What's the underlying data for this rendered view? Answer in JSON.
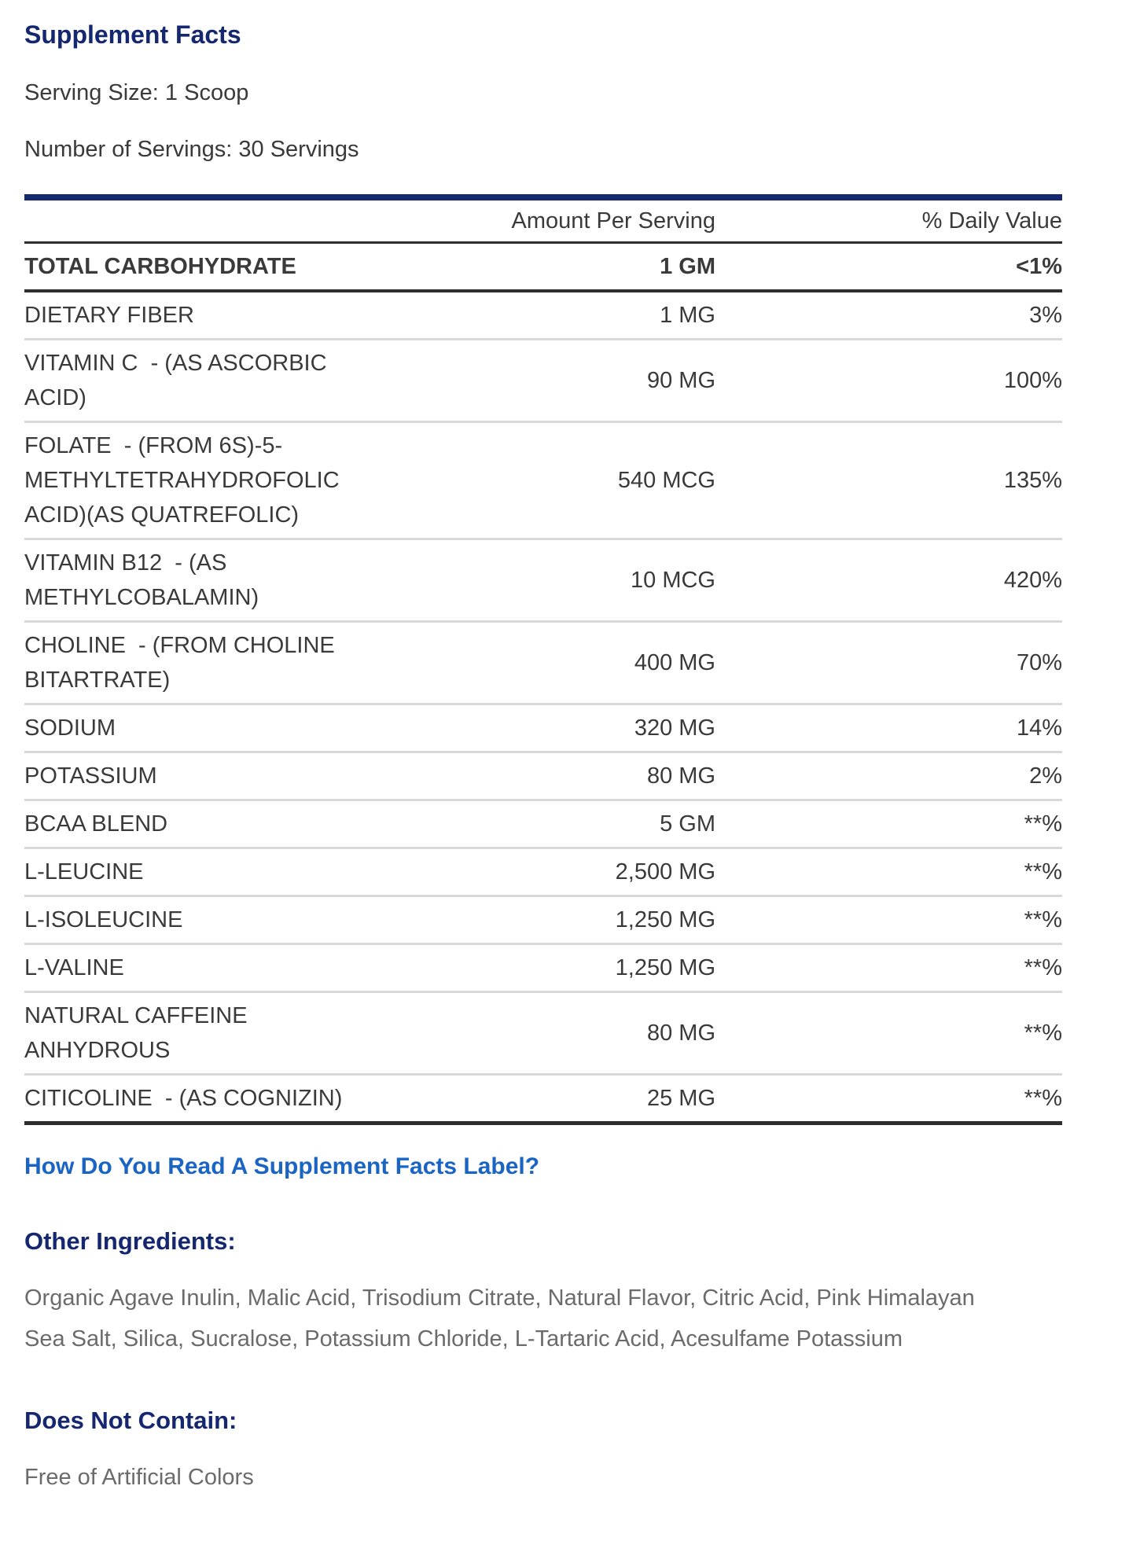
{
  "header": {
    "title": "Supplement Facts",
    "serving_size": "Serving Size: 1 Scoop",
    "number_of_servings": "Number of Servings: 30 Servings"
  },
  "table": {
    "columns": {
      "amount": "Amount Per Serving",
      "daily_value": "% Daily Value"
    },
    "rows": [
      {
        "name": "TOTAL CARBOHYDRATE",
        "amount": "1 GM",
        "dv": "<1%"
      },
      {
        "name": "DIETARY FIBER",
        "amount": "1 MG",
        "dv": "3%"
      },
      {
        "name": "VITAMIN C  - (AS ASCORBIC\nACID)",
        "amount": "90 MG",
        "dv": "100%"
      },
      {
        "name": "FOLATE  - (FROM 6S)-5-\nMETHYLTETRAHYDROFOLIC\nACID)(AS QUATREFOLIC)",
        "amount": "540 MCG",
        "dv": "135%"
      },
      {
        "name": "VITAMIN B12  - (AS\nMETHYLCOBALAMIN)",
        "amount": "10 MCG",
        "dv": "420%"
      },
      {
        "name": "CHOLINE  - (FROM CHOLINE\nBITARTRATE)",
        "amount": "400 MG",
        "dv": "70%"
      },
      {
        "name": "SODIUM",
        "amount": "320 MG",
        "dv": "14%"
      },
      {
        "name": "POTASSIUM",
        "amount": "80 MG",
        "dv": "2%"
      },
      {
        "name": "BCAA BLEND",
        "amount": "5 GM",
        "dv": "**%"
      },
      {
        "name": "L-LEUCINE",
        "amount": "2,500 MG",
        "dv": "**%"
      },
      {
        "name": "L-ISOLEUCINE",
        "amount": "1,250 MG",
        "dv": "**%"
      },
      {
        "name": "L-VALINE",
        "amount": "1,250 MG",
        "dv": "**%"
      },
      {
        "name": "NATURAL CAFFEINE\nANHYDROUS",
        "amount": "80 MG",
        "dv": "**%"
      },
      {
        "name": "CITICOLINE  - (AS COGNIZIN)",
        "amount": "25 MG",
        "dv": "**%"
      }
    ]
  },
  "link": {
    "label": "How Do You Read A Supplement Facts Label?"
  },
  "other_ingredients": {
    "heading": "Other Ingredients:",
    "text": "Organic Agave Inulin, Malic Acid, Trisodium Citrate, Natural Flavor, Citric Acid, Pink Himalayan\nSea Salt, Silica, Sucralose, Potassium Chloride, L-Tartaric Acid, Acesulfame Potassium"
  },
  "does_not_contain": {
    "heading": "Does Not Contain:",
    "text": "Free of Artificial Colors"
  },
  "colors": {
    "navy": "#14276f",
    "link_blue": "#1a64c4",
    "text_dark": "#3a3a3a",
    "text_gray": "#6b6b6b",
    "separator_gray": "#d9d9d9",
    "line_dark": "#2e2e2e"
  }
}
